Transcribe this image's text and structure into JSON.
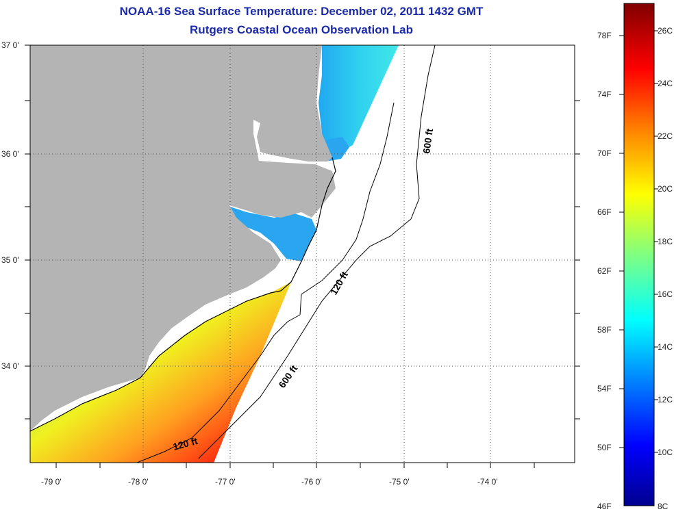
{
  "title": "NOAA-16 Sea Surface Temperature:  December 02, 2011 1432 GMT",
  "subtitle": "Rutgers Coastal Ocean Observation Lab",
  "longitude_labels": [
    "-79 0'",
    "-78 0'",
    "-77 0'",
    "-76 0'",
    "-75 0'",
    "-74 0'"
  ],
  "latitude_labels": [
    "37 0'",
    "36 0'",
    "35 0'",
    "34 0'"
  ],
  "isobath_labels": [
    "600 ft",
    "120 ft",
    "600 ft",
    "120 ft"
  ],
  "colorbar": {
    "fahrenheit_labels": [
      "78F",
      "74F",
      "70F",
      "66F",
      "62F",
      "58F",
      "54F",
      "50F",
      "46F"
    ],
    "celsius_labels": [
      "26C",
      "24C",
      "22C",
      "20C",
      "18C",
      "16C",
      "14C",
      "12C",
      "10C",
      "8C"
    ],
    "colors": [
      "#00008f",
      "#0000ff",
      "#0080ff",
      "#00ffff",
      "#80ff80",
      "#ffff00",
      "#ff8000",
      "#ff0000",
      "#800000"
    ]
  },
  "colors": {
    "land": "#b4b4b4",
    "title": "#1b2aa8",
    "grid": "#555555"
  }
}
